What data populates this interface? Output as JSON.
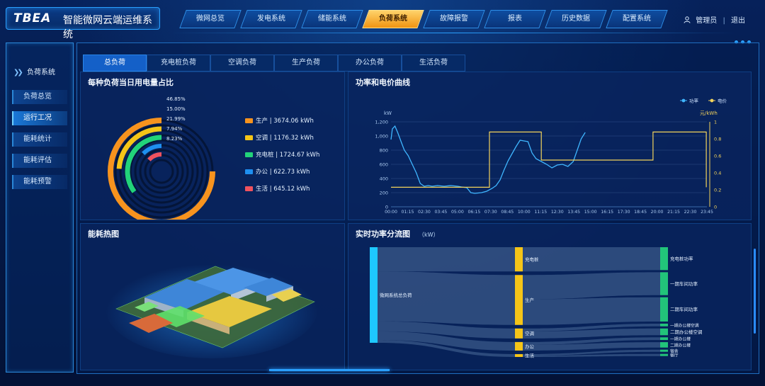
{
  "app": {
    "logo": "TBEA",
    "title": "智能微网云端运维系统"
  },
  "nav": [
    {
      "label": "微网总览",
      "active": false
    },
    {
      "label": "发电系统",
      "active": false
    },
    {
      "label": "储能系统",
      "active": false
    },
    {
      "label": "负荷系统",
      "active": true
    },
    {
      "label": "故障报警",
      "active": false
    },
    {
      "label": "报表",
      "active": false
    },
    {
      "label": "历史数据",
      "active": false
    },
    {
      "label": "配置系统",
      "active": false
    }
  ],
  "user": {
    "name": "管理员",
    "logout": "退出",
    "user_icon": "user-icon"
  },
  "sidebar": {
    "heading": "负荷系统",
    "items": [
      {
        "label": "负荷总览",
        "active": false
      },
      {
        "label": "运行工况",
        "active": true
      },
      {
        "label": "能耗统计",
        "active": false
      },
      {
        "label": "能耗评估",
        "active": false
      },
      {
        "label": "能耗预警",
        "active": false
      }
    ]
  },
  "tabs": [
    {
      "label": "总负荷",
      "active": true
    },
    {
      "label": "充电桩负荷",
      "active": false
    },
    {
      "label": "空调负荷",
      "active": false
    },
    {
      "label": "生产负荷",
      "active": false
    },
    {
      "label": "办公负荷",
      "active": false
    },
    {
      "label": "生活负荷",
      "active": false
    }
  ],
  "panels": {
    "share": {
      "title": "每种负荷当日用电量占比"
    },
    "curve": {
      "title": "功率和电价曲线"
    },
    "heatmap": {
      "title": "能耗热图"
    },
    "flow": {
      "title": "实时功率分流图",
      "unit": "（kW）"
    }
  },
  "chart_data": [
    {
      "type": "pie",
      "title": "每种负荷当日用电量占比",
      "categories": [
        "生产",
        "空调",
        "充电桩",
        "办公",
        "生活"
      ],
      "values": [
        46.85,
        15.0,
        21.99,
        7.94,
        8.23
      ],
      "value_labels": [
        "46.85%",
        "15.00%",
        "21.99%",
        "7.94%",
        "8.23%"
      ],
      "legend_labels": [
        "生产 | 3674.06 kWh",
        "空调 | 1176.32 kWh",
        "充电桩 | 1724.67 kWh",
        "办公 | 622.73 kWh",
        "生活 | 645.12 kWh"
      ],
      "colors": [
        "#f7931e",
        "#f5c518",
        "#22d37a",
        "#1e8ff0",
        "#f0525e"
      ],
      "style": "radial-rings"
    },
    {
      "type": "line",
      "title": "功率和电价曲线",
      "ylabel": "kW",
      "y2label": "元/kWh",
      "ylim": [
        0,
        1200
      ],
      "y2lim": [
        0,
        1
      ],
      "yticks": [
        "0",
        "200",
        "400",
        "600",
        "800",
        "1,000",
        "1,200"
      ],
      "y2ticks": [
        "0",
        "0.2",
        "0.4",
        "0.6",
        "0.8",
        "1"
      ],
      "xticks": [
        "00:00",
        "01:15",
        "02:30",
        "03:45",
        "05:00",
        "06:15",
        "07:30",
        "08:45",
        "10:00",
        "11:15",
        "12:30",
        "13:45",
        "15:00",
        "16:15",
        "17:30",
        "18:45",
        "20:00",
        "21:15",
        "22:30",
        "23:45"
      ],
      "legend": [
        "功率",
        "电价"
      ],
      "series": [
        {
          "name": "功率",
          "color": "#3fb6ff",
          "axis": "left",
          "x": [
            0,
            0.1,
            0.3,
            0.5,
            0.8,
            1.0,
            1.3,
            1.6,
            1.9,
            2.2,
            2.5,
            2.8,
            3.1,
            3.5,
            4.0,
            4.5,
            5.0,
            5.3,
            5.7,
            6.0,
            6.3,
            6.8,
            7.2,
            7.6,
            7.9,
            8.2,
            8.5,
            8.8,
            9.1,
            9.4,
            9.7,
            10.0,
            10.3,
            10.6,
            10.9,
            11.3,
            11.7,
            12.1,
            12.5,
            12.9,
            13.3,
            13.7,
            14.0,
            14.3,
            14.6
          ],
          "y": [
            950,
            1100,
            1140,
            1050,
            900,
            800,
            720,
            600,
            480,
            330,
            290,
            300,
            290,
            300,
            290,
            300,
            290,
            280,
            270,
            200,
            190,
            200,
            220,
            260,
            300,
            380,
            520,
            650,
            750,
            850,
            940,
            930,
            920,
            760,
            680,
            640,
            600,
            550,
            590,
            600,
            570,
            640,
            800,
            960,
            1050
          ]
        },
        {
          "name": "电价",
          "color": "#f3d35b",
          "axis": "right",
          "x": [
            0,
            7.4,
            7.4,
            11.3,
            11.3,
            19.7,
            19.7,
            23.7,
            23.7
          ],
          "y": [
            0.23,
            0.23,
            0.88,
            0.88,
            0.55,
            0.55,
            0.88,
            0.88,
            0.23
          ]
        }
      ],
      "grid": true
    },
    {
      "type": "sankey",
      "title": "实时功率分流图",
      "nodes": [
        {
          "id": "微网系统总负荷",
          "level": 0
        },
        {
          "id": "充电桩",
          "level": 1
        },
        {
          "id": "生产",
          "level": 1
        },
        {
          "id": "空调",
          "level": 1
        },
        {
          "id": "办公",
          "level": 1
        },
        {
          "id": "生活",
          "level": 1
        },
        {
          "id": "充电桩功率",
          "level": 2
        },
        {
          "id": "一期车间功率",
          "level": 2
        },
        {
          "id": "二期车间功率",
          "level": 2
        },
        {
          "id": "一期办公楼空调",
          "level": 2
        },
        {
          "id": "二期办公楼空调",
          "level": 2
        },
        {
          "id": "一期办公楼",
          "level": 2
        },
        {
          "id": "二期办公楼",
          "level": 2
        },
        {
          "id": "宿舍",
          "level": 2
        },
        {
          "id": "餐厅",
          "level": 2
        }
      ],
      "links": [
        {
          "source": "微网系统总负荷",
          "target": "充电桩",
          "value": 17
        },
        {
          "source": "微网系统总负荷",
          "target": "生产",
          "value": 35
        },
        {
          "source": "微网系统总负荷",
          "target": "空调",
          "value": 7
        },
        {
          "source": "微网系统总负荷",
          "target": "办公",
          "value": 6
        },
        {
          "source": "微网系统总负荷",
          "target": "生活",
          "value": 2
        },
        {
          "source": "充电桩",
          "target": "充电桩功率",
          "value": 17
        },
        {
          "source": "生产",
          "target": "一期车间功率",
          "value": 17
        },
        {
          "source": "生产",
          "target": "二期车间功率",
          "value": 18
        },
        {
          "source": "空调",
          "target": "一期办公楼空调",
          "value": 2
        },
        {
          "source": "空调",
          "target": "二期办公楼空调",
          "value": 5
        },
        {
          "source": "办公",
          "target": "一期办公楼",
          "value": 2
        },
        {
          "source": "办公",
          "target": "二期办公楼",
          "value": 4
        },
        {
          "source": "生活",
          "target": "宿舍",
          "value": 1
        },
        {
          "source": "生活",
          "target": "餐厅",
          "value": 1
        }
      ],
      "colors": {
        "level0": "#1ec8ff",
        "level1": "#f5c518",
        "level2": "#22c47a",
        "link": "#5a7da6"
      }
    }
  ]
}
